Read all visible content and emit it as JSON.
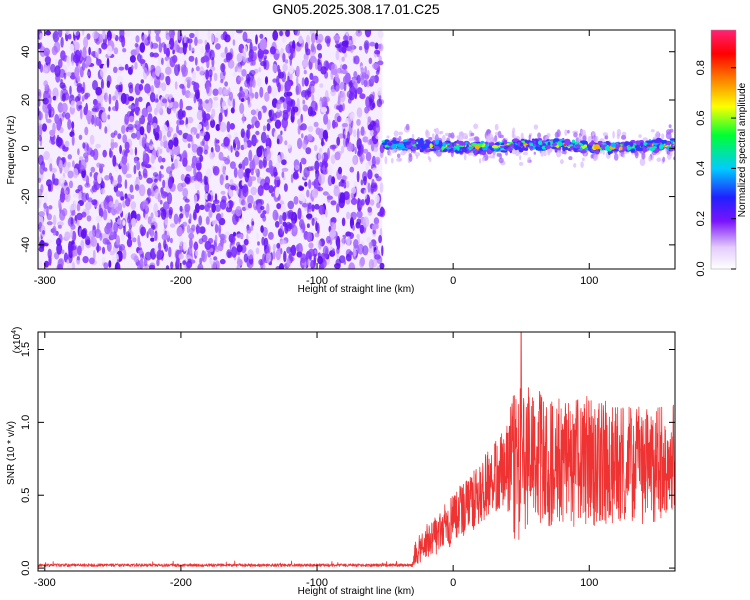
{
  "title": "GN05.2025.308.17.01.C25",
  "chart_data": [
    {
      "type": "heatmap",
      "name": "spectrogram",
      "xlabel": "Height of straight line (km)",
      "ylabel": "Frequency (Hz)",
      "xlim": [
        -305,
        163
      ],
      "ylim": [
        -50,
        49
      ],
      "xticks": [
        -300,
        -200,
        -100,
        0,
        100
      ],
      "yticks": [
        -40,
        -20,
        0,
        20,
        40
      ],
      "noise_region_end_km": -52,
      "signal_center_hz": 1,
      "signal_band_hz": [
        -6,
        7
      ],
      "colorbar": {
        "label": "Normalized spectral amplitude",
        "range": [
          0.0,
          0.95
        ],
        "ticks": [
          "0.0",
          "0.2",
          "0.4",
          "0.6",
          "0.8"
        ],
        "tick_values": [
          0.0,
          0.2,
          0.4,
          0.6,
          0.8
        ]
      }
    },
    {
      "type": "line",
      "name": "snr",
      "xlabel": "Height of straight line (km)",
      "ylabel": "SNR (10 * v/v)",
      "multiplier": "(x10",
      "multiplier_exp": "4",
      "xlim": [
        -305,
        163
      ],
      "ylim": [
        -0.02,
        1.62
      ],
      "xticks": [
        -300,
        -200,
        -100,
        0,
        100
      ],
      "yticks": [
        "0.0",
        "0.5",
        "1.0",
        "1.5"
      ],
      "ytick_values": [
        0.0,
        0.5,
        1.0,
        1.5
      ],
      "color": "#ef3333",
      "series_profile_x": [
        -305,
        -30,
        -28,
        -20,
        -10,
        0,
        10,
        20,
        30,
        40,
        45,
        60,
        80,
        100,
        120,
        140,
        163
      ],
      "series_profile_y": [
        0.02,
        0.02,
        0.1,
        0.18,
        0.25,
        0.33,
        0.42,
        0.52,
        0.62,
        0.7,
        0.72,
        0.75,
        0.72,
        0.73,
        0.72,
        0.7,
        0.74
      ],
      "series_amplitude": [
        0.01,
        0.01,
        0.08,
        0.12,
        0.15,
        0.18,
        0.2,
        0.22,
        0.24,
        0.3,
        0.55,
        0.48,
        0.45,
        0.45,
        0.42,
        0.4,
        0.4
      ],
      "peak": {
        "x": 50,
        "y": 1.62
      }
    }
  ]
}
